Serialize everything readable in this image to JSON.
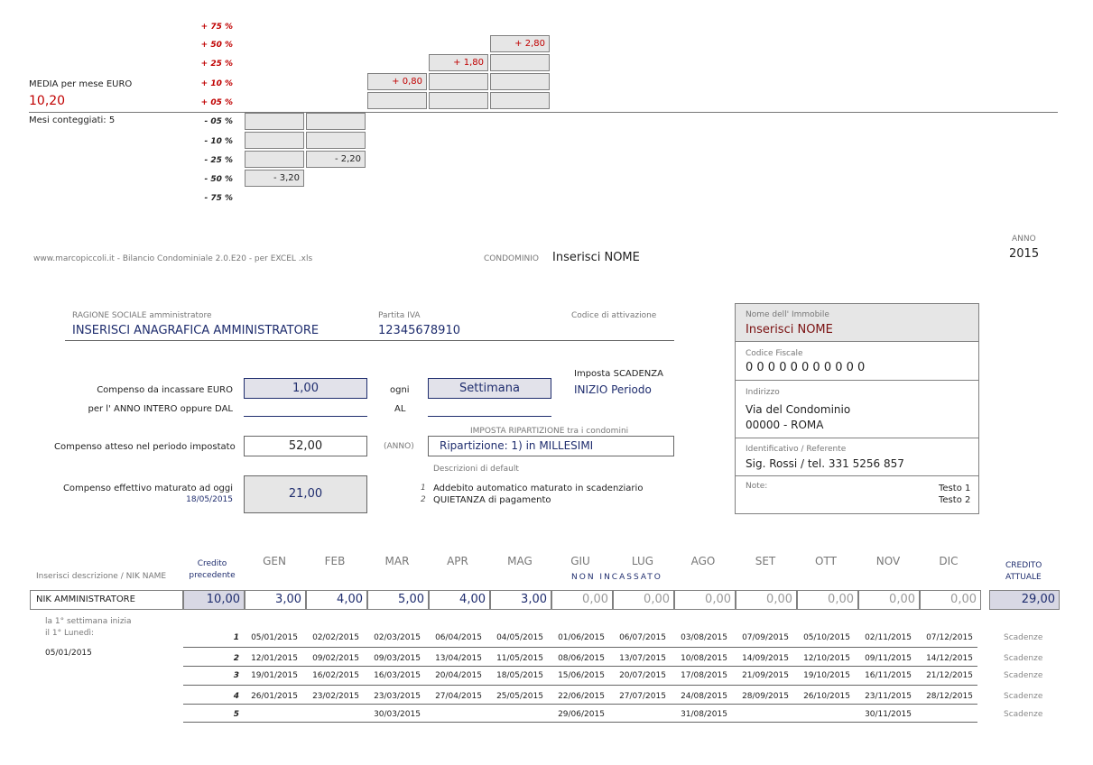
{
  "chart": {
    "media_label": "MEDIA per mese EURO",
    "media_value": "10,20",
    "mesi_label": "Mesi conteggiati: 5",
    "pct_labels_pos": [
      "+ 75 %",
      "+ 50 %",
      "+ 25 %",
      "+ 10 %",
      "+ 05 %"
    ],
    "pct_labels_neg": [
      "- 05 %",
      "- 10 %",
      "- 25 %",
      "- 50 %",
      "- 75 %"
    ],
    "bar_values": [
      "- 3,20",
      "- 2,20",
      "+ 0,80",
      "+ 1,80",
      "+ 2,80"
    ]
  },
  "header": {
    "site": "www.marcopiccoli.it - Bilancio Condominiale 2.0.E20 - per EXCEL .xls",
    "condominio_label": "CONDOMINIO",
    "condominio_value": "Inserisci NOME",
    "anno_label": "ANNO",
    "anno_value": "2015"
  },
  "admin": {
    "ragione_label": "RAGIONE SOCIALE amministratore",
    "ragione_value": "INSERISCI ANAGRAFICA AMMINISTRATORE",
    "piva_label": "Partita IVA",
    "piva_value": "12345678910",
    "codice_label": "Codice di attivazione",
    "compenso_label": "Compenso da incassare EURO",
    "compenso_value": "1,00",
    "ogni_label": "ogni",
    "periodo_value": "Settimana",
    "imposta_scadenza_label": "Imposta SCADENZA",
    "imposta_scadenza_value": "INIZIO Periodo",
    "anno_intero_label": "per l' ANNO INTERO oppure DAL",
    "al_label": "AL",
    "ripartizione_label": "IMPOSTA RIPARTIZIONE",
    "ripartizione_label_2": "tra i condomini",
    "atteso_label": "Compenso atteso nel periodo impostato",
    "atteso_value": "52,00",
    "anno_paren": "(ANNO)",
    "ripartizione_value": "Ripartizione:  1)  in MILLESIMI",
    "descrizioni_label": "Descrizioni di default",
    "effettivo_label": "Compenso effettivo maturato ad oggi",
    "effettivo_date": "18/05/2015",
    "effettivo_value": "21,00",
    "desc1_num": "1",
    "desc1": "Addebito automatico maturato in scadenziario",
    "desc2_num": "2",
    "desc2": "QUIETANZA di pagamento"
  },
  "immobile": {
    "nome_label": "Nome dell' Immobile",
    "nome_value": "Inserisci NOME",
    "cf_label": "Codice Fiscale",
    "cf_value": "0 0 0 0 0 0 0 0 0 0 0",
    "indirizzo_label": "Indirizzo",
    "indirizzo_line1": "Via del Condominio",
    "indirizzo_line2": "00000 - ROMA",
    "ident_label": "Identificativo / Referente",
    "ident_value": "Sig. Rossi / tel. 331 5256 857",
    "note_label": "Note:",
    "testo1": "Testo 1",
    "testo2": "Testo 2"
  },
  "table": {
    "desc_header": "Inserisci descrizione / NIK NAME",
    "credito_prec_1": "Credito",
    "credito_prec_2": "precedente",
    "months": [
      "GEN",
      "FEB",
      "MAR",
      "APR",
      "MAG",
      "GIU",
      "LUG",
      "AGO",
      "SET",
      "OTT",
      "NOV",
      "DIC"
    ],
    "non_incassato": "NON  INCASSATO",
    "credito_att_1": "CREDITO",
    "credito_att_2": "ATTUALE",
    "row_name": "NIK AMMINISTRATORE",
    "credito_precedente": "10,00",
    "values": [
      "3,00",
      "4,00",
      "5,00",
      "4,00",
      "3,00",
      "0,00",
      "0,00",
      "0,00",
      "0,00",
      "0,00",
      "0,00",
      "0,00"
    ],
    "credito_attuale": "29,00",
    "note1": "la 1° settimana inizia",
    "note2": "il 1° Lunedì:",
    "start_date": "05/01/2015",
    "scadenze_label": "Scadenze",
    "week_nums": [
      "1",
      "2",
      "3",
      "4",
      "5"
    ],
    "weeks": [
      [
        "05/01/2015",
        "02/02/2015",
        "02/03/2015",
        "06/04/2015",
        "04/05/2015",
        "01/06/2015",
        "06/07/2015",
        "03/08/2015",
        "07/09/2015",
        "05/10/2015",
        "02/11/2015",
        "07/12/2015"
      ],
      [
        "12/01/2015",
        "09/02/2015",
        "09/03/2015",
        "13/04/2015",
        "11/05/2015",
        "08/06/2015",
        "13/07/2015",
        "10/08/2015",
        "14/09/2015",
        "12/10/2015",
        "09/11/2015",
        "14/12/2015"
      ],
      [
        "19/01/2015",
        "16/02/2015",
        "16/03/2015",
        "20/04/2015",
        "18/05/2015",
        "15/06/2015",
        "20/07/2015",
        "17/08/2015",
        "21/09/2015",
        "19/10/2015",
        "16/11/2015",
        "21/12/2015"
      ],
      [
        "26/01/2015",
        "23/02/2015",
        "23/03/2015",
        "27/04/2015",
        "25/05/2015",
        "22/06/2015",
        "27/07/2015",
        "24/08/2015",
        "28/09/2015",
        "26/10/2015",
        "23/11/2015",
        "28/12/2015"
      ],
      [
        "",
        "",
        "30/03/2015",
        "",
        "",
        "29/06/2015",
        "",
        "31/08/2015",
        "",
        "",
        "30/11/2015",
        ""
      ]
    ]
  }
}
